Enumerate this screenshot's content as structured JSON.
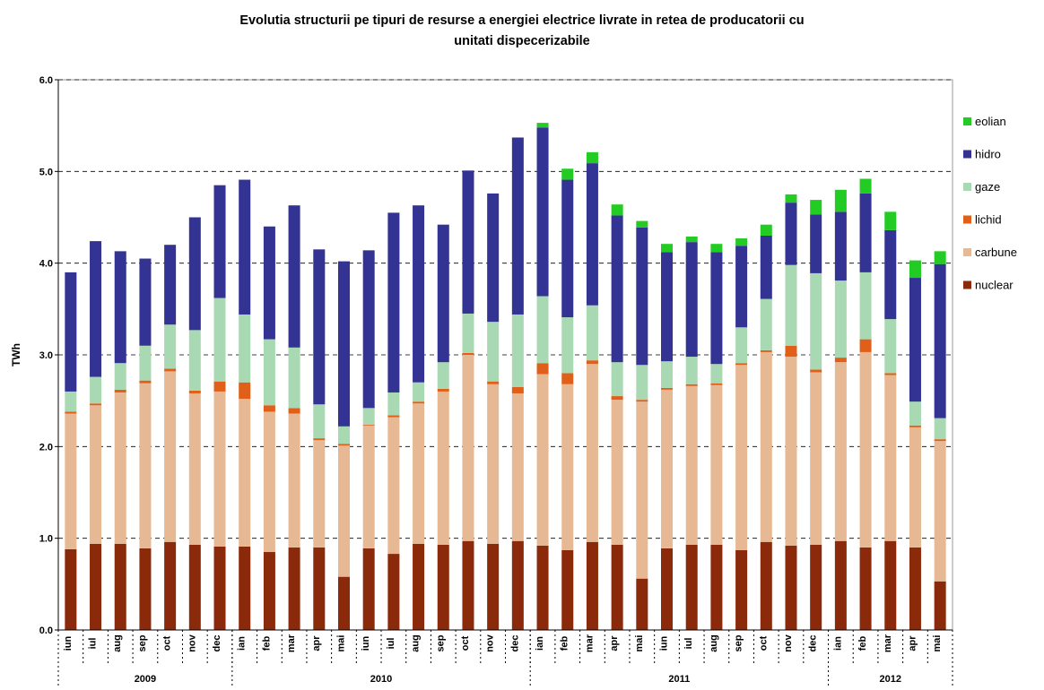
{
  "chart_data": {
    "type": "stacked_bar",
    "title": [
      "Evolutia structurii pe tipuri de resurse a energiei electrice livrate in retea de producatorii cu",
      "unitati dispecerizabile"
    ],
    "y_label": "TWh",
    "categories": [
      "iun",
      "iul",
      "aug",
      "sep",
      "oct",
      "nov",
      "dec",
      "ian",
      "feb",
      "mar",
      "apr",
      "mai",
      "iun",
      "iul",
      "aug",
      "sep",
      "oct",
      "nov",
      "dec",
      "ian",
      "feb",
      "mar",
      "apr",
      "mai",
      "iun",
      "iul",
      "aug",
      "sep",
      "oct",
      "nov",
      "dec",
      "ian",
      "feb",
      "mar",
      "apr",
      "mai"
    ],
    "category_groups": [
      {
        "label": "2009",
        "size": 7
      },
      {
        "label": "2010",
        "size": 12
      },
      {
        "label": "2011",
        "size": 12
      },
      {
        "label": "2012",
        "size": 5
      }
    ],
    "series": [
      {
        "name": "nuclear",
        "color": "#8b2a0a",
        "values": [
          0.88,
          0.94,
          0.94,
          0.89,
          0.96,
          0.93,
          0.91,
          0.91,
          0.85,
          0.9,
          0.9,
          0.58,
          0.89,
          0.83,
          0.94,
          0.93,
          0.97,
          0.94,
          0.97,
          0.92,
          0.87,
          0.96,
          0.93,
          0.56,
          0.89,
          0.93,
          0.93,
          0.87,
          0.96,
          0.92,
          0.93,
          0.97,
          0.9,
          0.97,
          0.9,
          0.53
        ]
      },
      {
        "name": "carbune",
        "color": "#e6b994",
        "values": [
          1.48,
          1.51,
          1.65,
          1.8,
          1.86,
          1.65,
          1.69,
          1.61,
          1.53,
          1.46,
          1.17,
          1.43,
          1.34,
          1.49,
          1.53,
          1.67,
          2.03,
          1.74,
          1.61,
          1.87,
          1.81,
          1.94,
          1.58,
          1.93,
          1.73,
          1.73,
          1.74,
          2.02,
          2.07,
          2.06,
          1.88,
          1.95,
          2.13,
          1.81,
          1.31,
          1.53
        ]
      },
      {
        "name": "lichid",
        "color": "#e0601a",
        "values": [
          0.02,
          0.02,
          0.03,
          0.03,
          0.03,
          0.03,
          0.11,
          0.18,
          0.07,
          0.06,
          0.02,
          0.02,
          0.01,
          0.02,
          0.02,
          0.03,
          0.02,
          0.03,
          0.07,
          0.12,
          0.12,
          0.04,
          0.04,
          0.02,
          0.02,
          0.02,
          0.02,
          0.02,
          0.02,
          0.12,
          0.03,
          0.05,
          0.14,
          0.02,
          0.02,
          0.02
        ]
      },
      {
        "name": "gaze",
        "color": "#a9d9b2",
        "values": [
          0.22,
          0.29,
          0.29,
          0.38,
          0.48,
          0.66,
          0.91,
          0.74,
          0.72,
          0.66,
          0.37,
          0.19,
          0.18,
          0.25,
          0.21,
          0.29,
          0.43,
          0.65,
          0.79,
          0.73,
          0.61,
          0.6,
          0.37,
          0.38,
          0.29,
          0.3,
          0.21,
          0.39,
          0.56,
          0.88,
          1.05,
          0.84,
          0.73,
          0.59,
          0.26,
          0.23
        ]
      },
      {
        "name": "hidro",
        "color": "#333393",
        "values": [
          1.3,
          1.48,
          1.22,
          0.95,
          0.87,
          1.23,
          1.23,
          1.47,
          1.23,
          1.55,
          1.69,
          1.8,
          1.72,
          1.96,
          1.93,
          1.5,
          1.56,
          1.4,
          1.93,
          1.84,
          1.5,
          1.55,
          1.6,
          1.5,
          1.19,
          1.25,
          1.22,
          0.89,
          0.69,
          0.68,
          0.64,
          0.75,
          0.86,
          0.97,
          1.35,
          1.68
        ]
      },
      {
        "name": "eolian",
        "color": "#22cc22",
        "values": [
          0,
          0,
          0,
          0,
          0,
          0,
          0,
          0,
          0,
          0,
          0,
          0,
          0,
          0,
          0,
          0,
          0,
          0,
          0,
          0.05,
          0.12,
          0.12,
          0.12,
          0.07,
          0.09,
          0.06,
          0.09,
          0.08,
          0.12,
          0.09,
          0.16,
          0.24,
          0.16,
          0.2,
          0.19,
          0.14
        ]
      }
    ],
    "ylim": [
      0,
      6
    ],
    "yticks": [
      {
        "value": 0,
        "label": "0.0"
      },
      {
        "value": 1,
        "label": "1.0"
      },
      {
        "value": 2,
        "label": "2.0"
      },
      {
        "value": 3,
        "label": "3.0"
      },
      {
        "value": 4,
        "label": "4.0"
      },
      {
        "value": 5,
        "label": "5.0"
      },
      {
        "value": 6,
        "label": "6.0"
      }
    ],
    "grid": true,
    "legend": "right"
  }
}
